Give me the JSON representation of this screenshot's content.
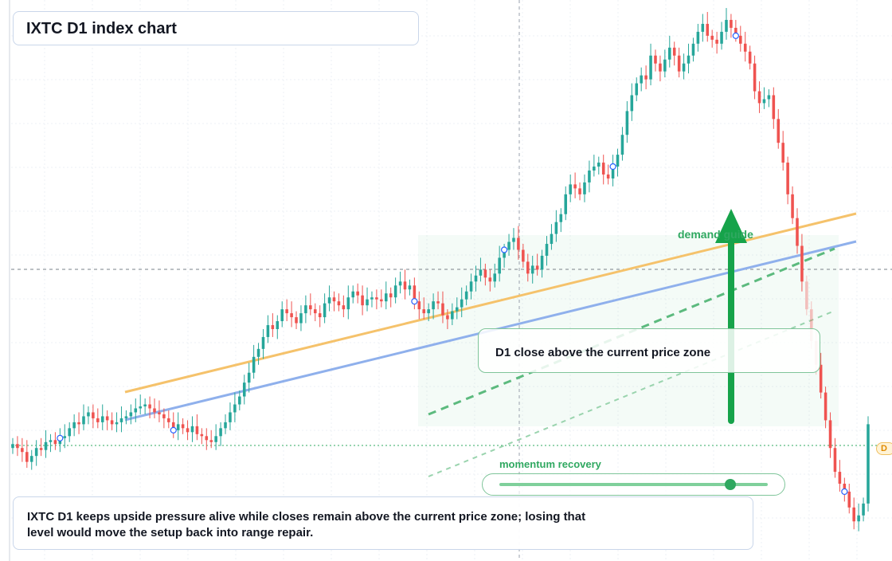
{
  "chart_data": {
    "type": "candlestick",
    "symbol": "IXTC",
    "timeframe": "D1",
    "title": "IXTC D1 index chart",
    "closes": [
      44,
      42,
      40,
      35,
      38,
      42,
      41,
      45,
      46,
      44,
      47,
      48,
      52,
      55,
      54,
      58,
      60,
      57,
      55,
      58,
      56,
      54,
      55,
      57,
      58,
      60,
      62,
      63,
      64,
      62,
      60,
      59,
      57,
      55,
      51,
      54,
      52,
      50,
      53,
      49,
      48,
      46,
      45,
      48,
      52,
      55,
      60,
      64,
      68,
      75,
      80,
      88,
      92,
      98,
      104,
      102,
      106,
      112,
      110,
      108,
      105,
      110,
      114,
      112,
      110,
      108,
      115,
      118,
      116,
      114,
      112,
      118,
      121,
      119,
      114,
      117,
      118,
      117,
      116,
      120,
      118,
      124,
      126,
      122,
      124,
      116,
      112,
      110,
      112,
      116,
      115,
      109,
      107,
      111,
      113,
      117,
      121,
      126,
      129,
      132,
      128,
      126,
      130,
      138,
      142,
      146,
      148,
      142,
      136,
      130,
      134,
      132,
      139,
      145,
      150,
      156,
      160,
      170,
      175,
      173,
      170,
      176,
      182,
      184,
      186,
      180,
      178,
      184,
      190,
      200,
      212,
      220,
      226,
      230,
      228,
      240,
      236,
      232,
      238,
      244,
      240,
      232,
      236,
      240,
      246,
      252,
      256,
      250,
      248,
      246,
      252,
      258,
      254,
      250,
      246,
      242,
      236,
      222,
      216,
      218,
      220,
      208,
      196,
      186,
      170,
      158,
      144,
      126,
      112,
      96,
      84,
      70,
      56,
      42,
      30,
      24,
      20,
      12,
      5,
      8,
      14,
      54
    ],
    "annotations": {
      "callout": "D1 close above the current price zone",
      "zone_label": "demand guide",
      "momentum_label": "momentum recovery",
      "summary": "IXTC D1 keeps upside pressure alive while closes remain above the current price zone; losing that level would move the setup back into range repair.",
      "momentum_level": 0.86,
      "price_tag": "D"
    },
    "colors": {
      "up": "#26a69a",
      "down": "#ef5350",
      "trend_upper": "#f5c26b",
      "trend_lower": "#8fb0ec",
      "zone": "#2fa860",
      "arrow": "#16a34a"
    },
    "grid": true
  }
}
